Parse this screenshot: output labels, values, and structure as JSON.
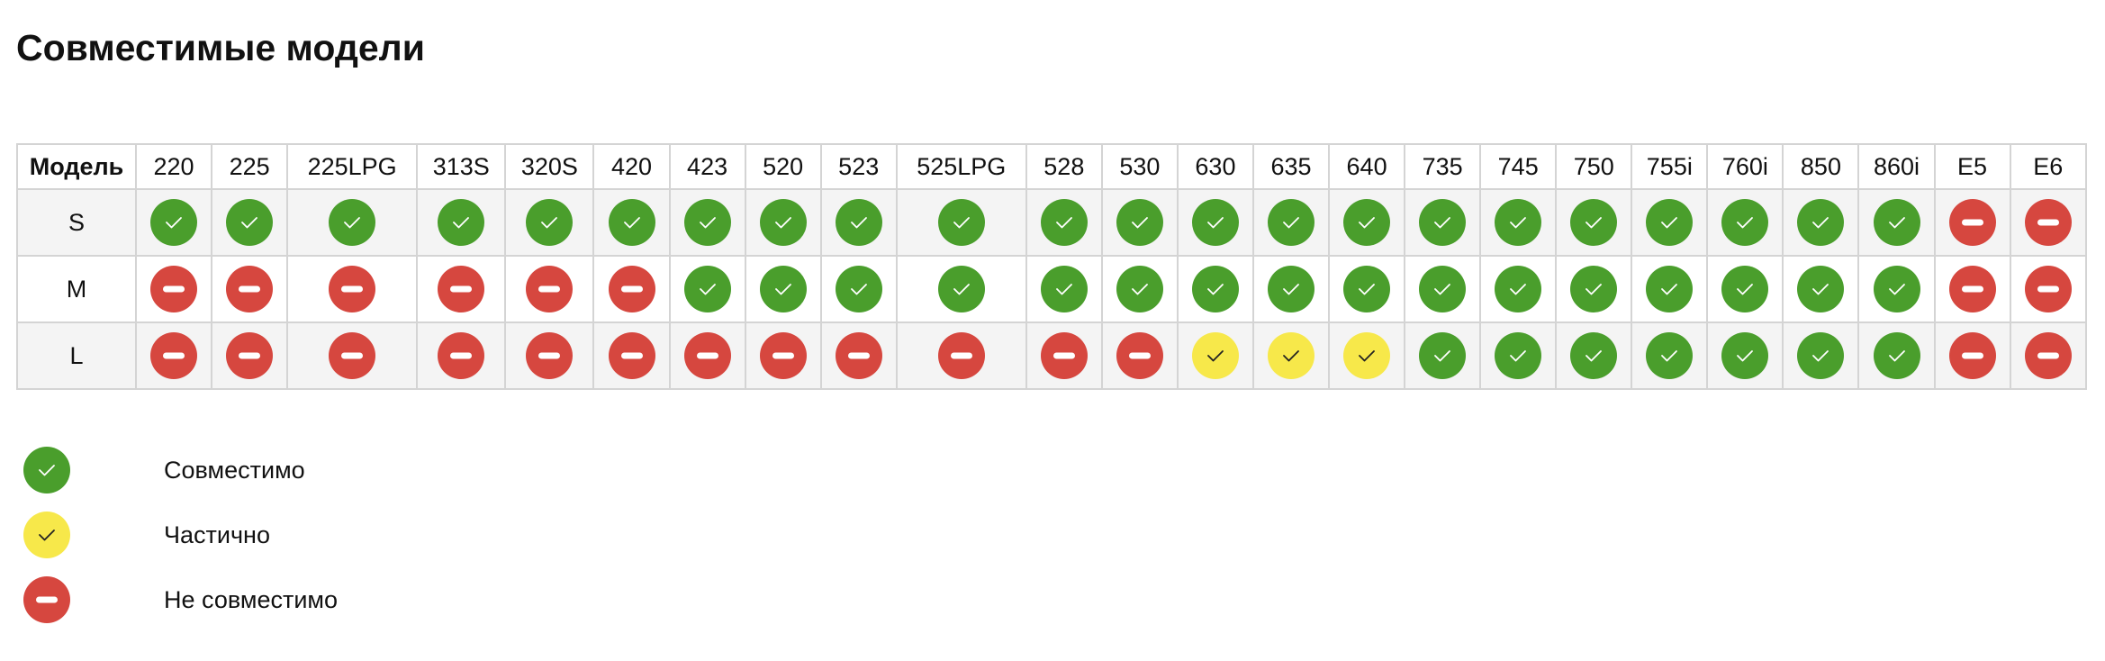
{
  "title": "Совместимые модели",
  "table": {
    "header_label": "Модель",
    "columns": [
      "220",
      "225",
      "225LPG",
      "313S",
      "320S",
      "420",
      "423",
      "520",
      "523",
      "525LPG",
      "528",
      "530",
      "630",
      "635",
      "640",
      "735",
      "745",
      "750",
      "755i",
      "760i",
      "850",
      "860i",
      "E5",
      "E6"
    ],
    "rows": [
      {
        "label": "S",
        "cells": [
          0,
          0,
          0,
          0,
          0,
          0,
          0,
          0,
          0,
          0,
          0,
          0,
          0,
          0,
          0,
          0,
          0,
          0,
          0,
          0,
          0,
          0,
          2,
          2
        ]
      },
      {
        "label": "M",
        "cells": [
          2,
          2,
          2,
          2,
          2,
          2,
          0,
          0,
          0,
          0,
          0,
          0,
          0,
          0,
          0,
          0,
          0,
          0,
          0,
          0,
          0,
          0,
          2,
          2
        ]
      },
      {
        "label": "L",
        "cells": [
          2,
          2,
          2,
          2,
          2,
          2,
          2,
          2,
          2,
          2,
          2,
          2,
          1,
          1,
          1,
          0,
          0,
          0,
          0,
          0,
          0,
          0,
          2,
          2
        ]
      }
    ]
  },
  "legend": [
    {
      "label": "Совместимо",
      "color": "#4a9e2c"
    },
    {
      "label": "Частично",
      "color": "#f7e84a"
    },
    {
      "label": "Не совместимо",
      "color": "#d6473f"
    }
  ]
}
